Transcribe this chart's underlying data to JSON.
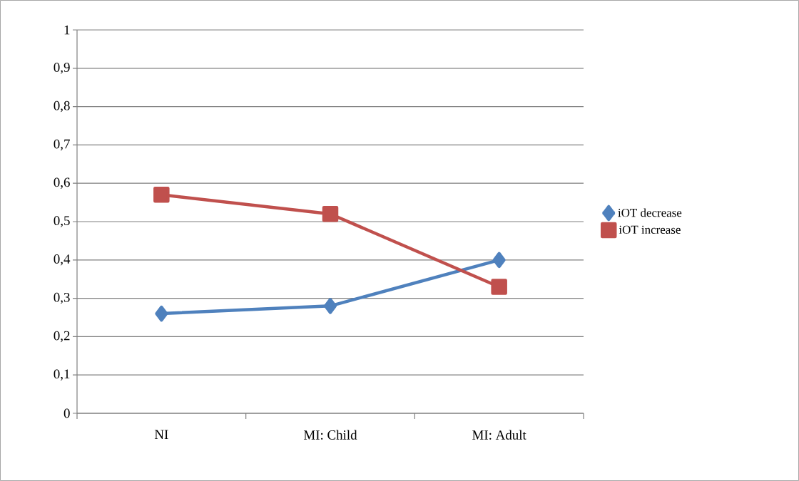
{
  "chart_data": {
    "type": "line",
    "categories": [
      "NI",
      "MI: Child",
      "MI: Adult"
    ],
    "series": [
      {
        "name": "iOT decrease",
        "color": "#4f81bd",
        "marker": "diamond",
        "values": [
          0.26,
          0.28,
          0.4
        ]
      },
      {
        "name": "iOT increase",
        "color": "#c0504d",
        "marker": "square",
        "values": [
          0.57,
          0.52,
          0.33
        ]
      }
    ],
    "ylim": [
      0,
      1
    ],
    "yticks": [
      0,
      {
        "value": 0.1,
        "label": "0,1"
      },
      {
        "value": 0.2,
        "label": "0,2"
      },
      {
        "value": 0.3,
        "label": "0,3"
      },
      {
        "value": 0.4,
        "label": "0,4"
      },
      {
        "value": 0.5,
        "label": "0,5"
      },
      {
        "value": 0.6,
        "label": "0,6"
      },
      {
        "value": 0.7,
        "label": "0,7"
      },
      {
        "value": 0.8,
        "label": "0,8"
      },
      {
        "value": 0.9,
        "label": "0,9"
      },
      1
    ],
    "grid": "y",
    "legend": "right",
    "line_style": "solid"
  }
}
